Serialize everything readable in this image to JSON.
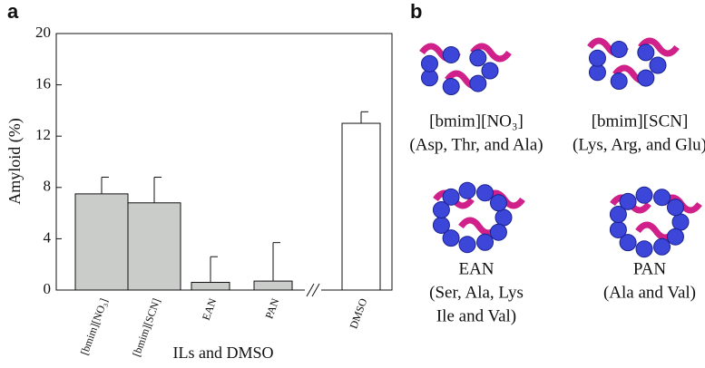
{
  "chart_data": {
    "type": "bar",
    "panel_label": "a",
    "y_label": "Amyloid (%)",
    "x_label": "ILs and DMSO",
    "categories": [
      "[bmim][NO₃]",
      "[bmim][SCN]",
      "EAN",
      "PAN",
      "DMSO"
    ],
    "values": [
      7.5,
      6.8,
      0.6,
      0.7,
      13.0
    ],
    "errors": [
      1.3,
      2.0,
      2.0,
      3.0,
      0.9
    ],
    "colors": [
      "#c9ccc9",
      "#c9ccc9",
      "#c9ccc9",
      "#c9ccc9",
      "#ffffff"
    ],
    "ylim": [
      0,
      20
    ],
    "yticks": [
      0,
      4,
      8,
      12,
      16,
      20
    ],
    "grid": false
  },
  "structures": {
    "panel_label": "b",
    "items": [
      {
        "name": "[bmim][NO₃]",
        "residues": [
          "(Asp, Thr, and Ala)"
        ]
      },
      {
        "name": "[bmim][SCN]",
        "residues": [
          "(Lys, Arg, and Glu)"
        ]
      },
      {
        "name": "EAN",
        "residues": [
          "(Ser, Ala, Lys",
          "Ile and Val)"
        ]
      },
      {
        "name": "PAN",
        "residues": [
          "(Ala and Val)"
        ]
      }
    ]
  }
}
